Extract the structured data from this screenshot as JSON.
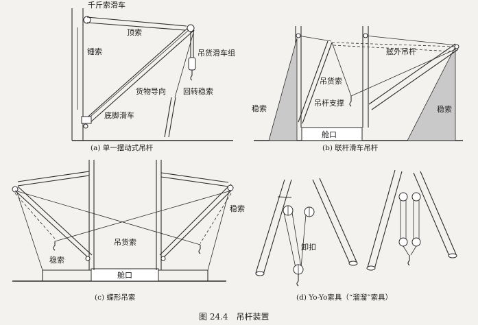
{
  "figure_caption": "图 24.4　吊杆装置",
  "panels": {
    "a": {
      "caption": "(a)  单一摆动式吊杆",
      "labels": {
        "topping_block": "千斤索滑车",
        "topping_lift": "顶索",
        "hammer_lift": "锤索",
        "cargo_block": "吊货滑车组",
        "cargo_lead": "货物导向",
        "guy": "回转稳索",
        "heel_block": "底脚滑车"
      }
    },
    "b": {
      "caption": "(b)  联杆滑车吊杆",
      "labels": {
        "outboard_boom": "舷外吊杆",
        "cargo_fall": "吊货索",
        "boom_support": "吊杆支撑",
        "guy_left": "稳索",
        "guy_right": "稳索",
        "hatch": "舱口"
      }
    },
    "c": {
      "caption": "(c)  蝶形吊索",
      "labels": {
        "guy_right": "稳索",
        "cargo_fall": "吊货索",
        "guy_left": "稳索",
        "hatch": "舱口"
      }
    },
    "d": {
      "caption": "(d)  Yo-Yo索具（“溜溜”索具）",
      "labels": {
        "shackle": "卸扣"
      }
    }
  }
}
